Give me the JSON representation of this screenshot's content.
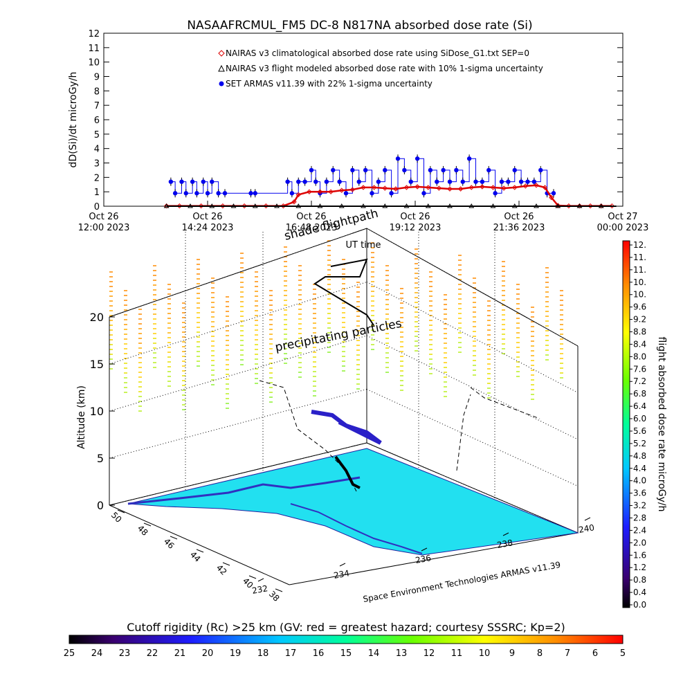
{
  "header": {
    "title": "NASAAFRCMUL_FM5 DC-8   N817NA absorbed dose rate (Si)"
  },
  "chart_data": [
    {
      "type": "scatter",
      "title": "NASAAFRCMUL_FM5 DC-8   N817NA absorbed dose rate (Si)",
      "ylabel": "dD(Si)/dt microGy/h",
      "xlabel": "",
      "ylim": [
        0,
        12
      ],
      "yticks": [
        "0",
        "1",
        "2",
        "3",
        "4",
        "5",
        "6",
        "7",
        "8",
        "9",
        "10",
        "11",
        "12"
      ],
      "xticks": [
        {
          "day": "Oct 26",
          "time": "12:00 2023"
        },
        {
          "day": "Oct 26",
          "time": "14:24 2023"
        },
        {
          "day": "Oct 26",
          "time": "16:48 2023"
        },
        {
          "day": "Oct 26",
          "time": "19:12 2023"
        },
        {
          "day": "Oct 26",
          "time": "21:36 2023"
        },
        {
          "day": "Oct 27",
          "time": "00:00 2023"
        }
      ],
      "x_hours": [
        0,
        24
      ],
      "legend_position": "top-center",
      "series": [
        {
          "name": "NAIRAS v3 climatological absorbed dose rate using SiDose_G1.txt SEP=0",
          "marker": "diamond",
          "color": "#dd0000",
          "x": [
            2.9,
            3.5,
            4.5,
            5.5,
            6.5,
            7.5,
            8.3,
            8.8,
            9.0,
            9.5,
            10.0,
            10.5,
            11.0,
            11.5,
            12.0,
            12.5,
            13.0,
            13.5,
            14.0,
            14.5,
            15.0,
            15.5,
            16.0,
            16.5,
            17.0,
            17.5,
            18.0,
            18.5,
            19.0,
            19.5,
            20.0,
            20.4,
            20.7,
            21.0,
            21.5,
            22.0,
            22.5,
            23.0,
            23.5
          ],
          "y": [
            0.02,
            0.02,
            0.02,
            0.02,
            0.02,
            0.02,
            0.02,
            0.3,
            0.8,
            1.0,
            1.0,
            1.0,
            1.1,
            1.15,
            1.3,
            1.3,
            1.25,
            1.2,
            1.3,
            1.35,
            1.3,
            1.25,
            1.2,
            1.2,
            1.3,
            1.35,
            1.3,
            1.25,
            1.3,
            1.4,
            1.45,
            1.3,
            0.6,
            0.05,
            0.02,
            0.02,
            0.02,
            0.02,
            0.02
          ]
        },
        {
          "name": "NAIRAS v3 flight modeled absorbed dose rate with 10% 1-sigma uncertainty",
          "marker": "triangle",
          "color": "#000000",
          "x": [
            2.9,
            4.0,
            5.0,
            6.0,
            7.0,
            8.0,
            9.0,
            10.0,
            11.0,
            12.0,
            13.0,
            14.0,
            15.0,
            16.0,
            17.0,
            18.0,
            19.0,
            20.0,
            21.0,
            22.0,
            23.0
          ],
          "y": [
            0,
            0,
            0,
            0,
            0,
            0,
            0,
            0,
            0,
            0,
            0,
            0,
            0,
            0,
            0,
            0,
            0,
            0,
            0,
            0,
            0
          ]
        },
        {
          "name": "SET ARMAS v11.39 with 22% 1-sigma uncertainty",
          "marker": "circle",
          "color": "#0000ee",
          "x": [
            3.1,
            3.3,
            3.6,
            3.8,
            4.1,
            4.3,
            4.6,
            4.8,
            5.0,
            5.3,
            5.6,
            6.8,
            7.0,
            8.5,
            8.7,
            9.0,
            9.3,
            9.6,
            9.8,
            10.0,
            10.3,
            10.6,
            10.9,
            11.2,
            11.5,
            11.8,
            12.1,
            12.4,
            12.7,
            13.0,
            13.3,
            13.6,
            13.9,
            14.2,
            14.5,
            14.8,
            15.1,
            15.4,
            15.7,
            16.0,
            16.3,
            16.6,
            16.9,
            17.2,
            17.5,
            17.8,
            18.1,
            18.4,
            18.7,
            19.0,
            19.3,
            19.6,
            19.9,
            20.2,
            20.5,
            20.8
          ],
          "y": [
            1.7,
            0.9,
            1.7,
            0.9,
            1.7,
            0.9,
            1.7,
            0.9,
            1.7,
            0.9,
            0.9,
            0.9,
            0.9,
            1.7,
            0.9,
            1.7,
            1.7,
            2.5,
            1.7,
            0.9,
            1.7,
            2.5,
            1.7,
            0.9,
            2.5,
            1.7,
            2.5,
            0.9,
            1.7,
            2.5,
            0.9,
            3.3,
            2.5,
            1.7,
            3.3,
            0.9,
            2.5,
            1.7,
            2.5,
            1.7,
            2.5,
            1.7,
            3.3,
            1.7,
            1.7,
            2.5,
            0.9,
            1.7,
            1.7,
            2.5,
            1.7,
            1.7,
            1.7,
            2.5,
            0.9,
            0.9
          ]
        }
      ]
    },
    {
      "type": "scatter",
      "subtype": "3d-flight-track",
      "title": "",
      "annotations": [
        "shade flightpath",
        "UT time",
        "precipitating particles",
        "Space Environment Technologies ARMAS v11.39"
      ],
      "zlabel": "Altitude (km)",
      "zlim": [
        0,
        20
      ],
      "zticks": [
        "0",
        "5",
        "10",
        "15",
        "20"
      ],
      "lat_ticks": [
        "38",
        "40",
        "42",
        "44",
        "46",
        "48",
        "50"
      ],
      "lon_ticks": [
        "232",
        "234",
        "236",
        "238",
        "240"
      ],
      "colorbar": {
        "label": "flight absorbed dose rate microGy/h",
        "ticks": [
          "0.0",
          "0.4",
          "0.8",
          "1.2",
          "1.6",
          "2.0",
          "2.4",
          "2.8",
          "3.2",
          "3.6",
          "4.0",
          "4.4",
          "4.8",
          "5.2",
          "5.6",
          "6.0",
          "6.4",
          "6.8",
          "7.2",
          "7.6",
          "8.0",
          "8.4",
          "8.8",
          "9.2",
          "9.6",
          "10.",
          "10.",
          "11.",
          "11.",
          "12."
        ]
      }
    },
    {
      "type": "heatmap",
      "subtype": "colorbar",
      "title": "Cutoff rigidity (Rc) >25 km (GV: red = greatest hazard; courtesy SSSRC; Kp=2)",
      "ticks": [
        "25",
        "24",
        "23",
        "22",
        "21",
        "20",
        "19",
        "18",
        "17",
        "16",
        "15",
        "14",
        "13",
        "12",
        "11",
        "10",
        "9",
        "8",
        "7",
        "6",
        "5"
      ]
    }
  ],
  "colors": {
    "climatological": "#dd0000",
    "flight_model": "#000000",
    "armas": "#0000ee",
    "terrain": "#22e0f0",
    "coast": "#3030c0"
  }
}
